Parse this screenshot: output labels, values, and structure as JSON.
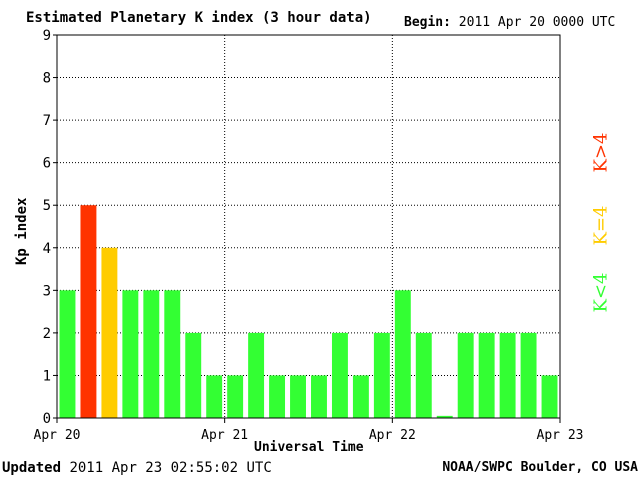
{
  "header": {
    "title": "Estimated Planetary K index (3 hour data)",
    "begin_label": "Begin:",
    "begin_value": "2011 Apr 20 0000 UTC"
  },
  "footer": {
    "updated_label": "Updated",
    "updated_value": "2011 Apr 23 02:55:02 UTC",
    "source": "NOAA/SWPC Boulder, CO USA"
  },
  "legend": {
    "high": "K>4",
    "equal": "K=4",
    "low": "K<4"
  },
  "colors": {
    "high": "#ff3300",
    "equal": "#ffcc00",
    "low": "#33ff33"
  },
  "chart_data": {
    "type": "bar",
    "title": "Estimated Planetary K index (3 hour data)",
    "xlabel": "Universal Time",
    "ylabel": "Kp index",
    "ylim": [
      0,
      9
    ],
    "yticks": [
      "0",
      "1",
      "2",
      "3",
      "4",
      "5",
      "6",
      "7",
      "8",
      "9"
    ],
    "xticks": [
      "Apr 20",
      "Apr 21",
      "Apr 22",
      "Apr 23"
    ],
    "grid": true,
    "legend_position": "right",
    "values": [
      3,
      5,
      4,
      3,
      3,
      3,
      2,
      1,
      1,
      2,
      1,
      1,
      1,
      2,
      1,
      2,
      3,
      2,
      0.05,
      2,
      2,
      2,
      2,
      1
    ]
  }
}
